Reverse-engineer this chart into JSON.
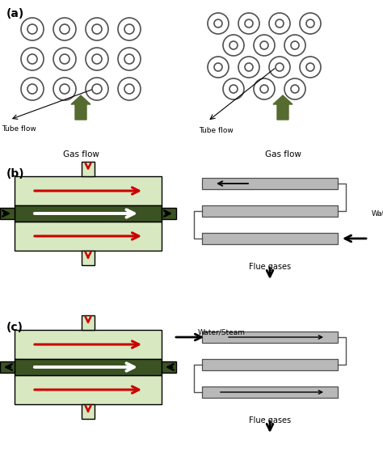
{
  "bg_color": "#ffffff",
  "olive_green": "#556B2F",
  "dark_green": "#3B5323",
  "light_green": "#D8E8C0",
  "gray_tube": "#B8B8B8",
  "dark_gray": "#505050",
  "red_arrow": "#CC0000",
  "label_a": "(a)",
  "label_b": "(b)",
  "label_c": "(c)"
}
